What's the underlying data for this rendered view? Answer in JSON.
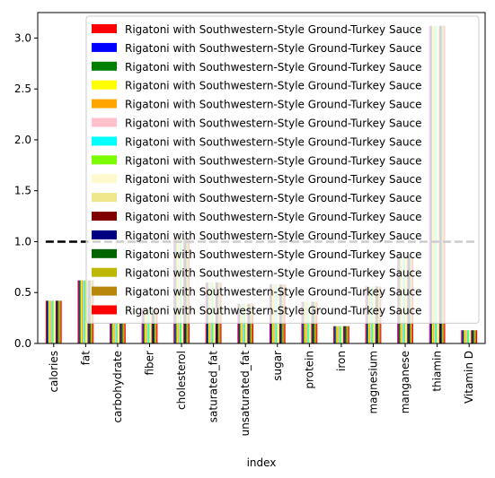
{
  "chart_data": {
    "type": "bar",
    "xlabel": "index",
    "ylabel": "",
    "ylim": [
      0,
      3.25
    ],
    "yticks": [
      0.0,
      0.5,
      1.0,
      1.5,
      2.0,
      2.5,
      3.0
    ],
    "ytick_labels": [
      "0.0",
      "0.5",
      "1.0",
      "1.5",
      "2.0",
      "2.5",
      "3.0"
    ],
    "grid": false,
    "legend_position": "top-right",
    "categories": [
      "calories",
      "fat",
      "carbohydrate",
      "fiber",
      "cholesterol",
      "saturated_fat",
      "unsaturated_fat",
      "sugar",
      "protein",
      "iron",
      "magnesium",
      "manganese",
      "thiamin",
      "Vitamin D"
    ],
    "series_values": [
      0.42,
      0.62,
      0.2,
      0.33,
      1.03,
      0.6,
      0.39,
      0.58,
      0.41,
      0.17,
      0.56,
      0.85,
      3.12,
      0.13
    ],
    "series": [
      {
        "name": "Rigatoni with Southwestern-Style Ground-Turkey Sauce",
        "color": "#ff0000"
      },
      {
        "name": "Rigatoni with Southwestern-Style Ground-Turkey Sauce",
        "color": "#0000ff"
      },
      {
        "name": "Rigatoni with Southwestern-Style Ground-Turkey Sauce",
        "color": "#008000"
      },
      {
        "name": "Rigatoni with Southwestern-Style Ground-Turkey Sauce",
        "color": "#ffff00"
      },
      {
        "name": "Rigatoni with Southwestern-Style Ground-Turkey Sauce",
        "color": "#ffa500"
      },
      {
        "name": "Rigatoni with Southwestern-Style Ground-Turkey Sauce",
        "color": "#ffc0cb"
      },
      {
        "name": "Rigatoni with Southwestern-Style Ground-Turkey Sauce",
        "color": "#00ffff"
      },
      {
        "name": "Rigatoni with Southwestern-Style Ground-Turkey Sauce",
        "color": "#7cfc00"
      },
      {
        "name": "Rigatoni with Southwestern-Style Ground-Turkey Sauce",
        "color": "#fffacd"
      },
      {
        "name": "Rigatoni with Southwestern-Style Ground-Turkey Sauce",
        "color": "#f0e68c"
      },
      {
        "name": "Rigatoni with Southwestern-Style Ground-Turkey Sauce",
        "color": "#800000"
      },
      {
        "name": "Rigatoni with Southwestern-Style Ground-Turkey Sauce",
        "color": "#000080"
      },
      {
        "name": "Rigatoni with Southwestern-Style Ground-Turkey Sauce",
        "color": "#006400"
      },
      {
        "name": "Rigatoni with Southwestern-Style Ground-Turkey Sauce",
        "color": "#bdb700"
      },
      {
        "name": "Rigatoni with Southwestern-Style Ground-Turkey Sauce",
        "color": "#b8860b"
      },
      {
        "name": "Rigatoni with Southwestern-Style Ground-Turkey Sauce",
        "color": "#ff0000"
      }
    ],
    "reference_line": {
      "y": 1.0,
      "color": "#000000",
      "style": "dashed"
    }
  }
}
